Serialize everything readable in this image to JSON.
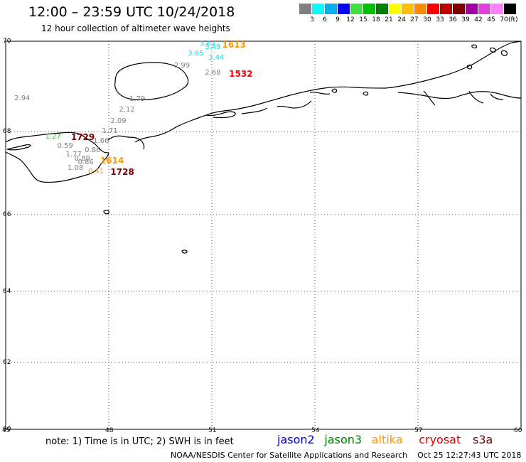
{
  "header": {
    "title": "12:00 – 23:59 UTC 10/24/2018",
    "subtitle": "12 hour collection of altimeter wave heights"
  },
  "colorbar": {
    "colors": [
      "#808080",
      "#00ffff",
      "#00b0f0",
      "#0000ff",
      "#40e040",
      "#00c000",
      "#008000",
      "#ffff00",
      "#ffc000",
      "#ff8c00",
      "#ff0000",
      "#c00000",
      "#800000",
      "#a000a0",
      "#e040e0",
      "#ff80ff",
      "#000000"
    ],
    "labels": [
      "3",
      "6",
      "9",
      "12",
      "15",
      "18",
      "21",
      "24",
      "27",
      "30",
      "33",
      "36",
      "39",
      "42",
      "45",
      "70"
    ],
    "unit": "(ft)"
  },
  "axes": {
    "lat_labels": [
      "70",
      "68",
      "66",
      "64",
      "62",
      "60"
    ],
    "lon_labels": [
      "45",
      "48",
      "51",
      "54",
      "57",
      "60"
    ]
  },
  "observations": [
    {
      "text": "3.67",
      "color": "#00e0e0",
      "lat": 69.93,
      "lon": 50.65
    },
    {
      "text": "3.49",
      "color": "#00e0e0",
      "lat": 69.85,
      "lon": 50.8
    },
    {
      "text": "3.65",
      "color": "#00e0e0",
      "lat": 69.72,
      "lon": 50.3
    },
    {
      "text": "3.44",
      "color": "#00e0e0",
      "lat": 69.62,
      "lon": 50.9
    },
    {
      "text": "2.99",
      "color": "#808080",
      "lat": 69.45,
      "lon": 49.9
    },
    {
      "text": "2.68",
      "color": "#808080",
      "lat": 69.3,
      "lon": 50.8
    },
    {
      "text": "2.94",
      "color": "#808080",
      "lat": 68.73,
      "lon": 45.25
    },
    {
      "text": "1.79",
      "color": "#808080",
      "lat": 68.72,
      "lon": 48.6
    },
    {
      "text": "2.12",
      "color": "#808080",
      "lat": 68.47,
      "lon": 48.3
    },
    {
      "text": "2.09",
      "color": "#808080",
      "lat": 68.22,
      "lon": 48.05
    },
    {
      "text": "1.71",
      "color": "#808080",
      "lat": 67.98,
      "lon": 47.8
    },
    {
      "text": "1.66",
      "color": "#808080",
      "lat": 67.76,
      "lon": 47.55
    },
    {
      "text": "1.27",
      "color": "#40c040",
      "lat": 67.86,
      "lon": 46.15
    },
    {
      "text": "0.59",
      "color": "#808080",
      "lat": 67.64,
      "lon": 46.5
    },
    {
      "text": "0.86",
      "color": "#808080",
      "lat": 67.54,
      "lon": 47.3
    },
    {
      "text": "1.77",
      "color": "#808080",
      "lat": 67.44,
      "lon": 46.75
    },
    {
      "text": "0.89",
      "color": "#808080",
      "lat": 67.34,
      "lon": 47.0
    },
    {
      "text": "0.86",
      "color": "#808080",
      "lat": 67.25,
      "lon": 47.1
    },
    {
      "text": "1.08",
      "color": "#808080",
      "lat": 67.12,
      "lon": 46.8
    },
    {
      "text": "0.41",
      "color": "#ff9900",
      "lat": 67.03,
      "lon": 47.4
    },
    {
      "text": "1729",
      "color": "#800000",
      "bold": true,
      "lat": 67.87,
      "lon": 46.9
    },
    {
      "text": "1614",
      "color": "#ff9900",
      "bold": true,
      "lat": 67.32,
      "lon": 47.75
    },
    {
      "text": "1728",
      "color": "#800000",
      "bold": true,
      "lat": 67.04,
      "lon": 48.05
    },
    {
      "text": "1613",
      "color": "#ff9900",
      "bold": true,
      "lat": 69.93,
      "lon": 51.3
    },
    {
      "text": "1532",
      "color": "#ff0000",
      "bold": true,
      "lat": 69.3,
      "lon": 51.5
    }
  ],
  "footer": {
    "note": "note: 1) Time is in UTC; 2) SWH is in feet",
    "legend": [
      {
        "name": "jason2",
        "color": "#0000cc"
      },
      {
        "name": "jason3",
        "color": "#008000"
      },
      {
        "name": "altika",
        "color": "#ff9900"
      },
      {
        "name": "cryosat",
        "color": "#e00000"
      },
      {
        "name": "s3a",
        "color": "#800000"
      }
    ],
    "credit": "NOAA/NESDIS Center for Satellite Applications and Research",
    "timestamp": "Oct 25 12:27:43 UTC 2018"
  }
}
